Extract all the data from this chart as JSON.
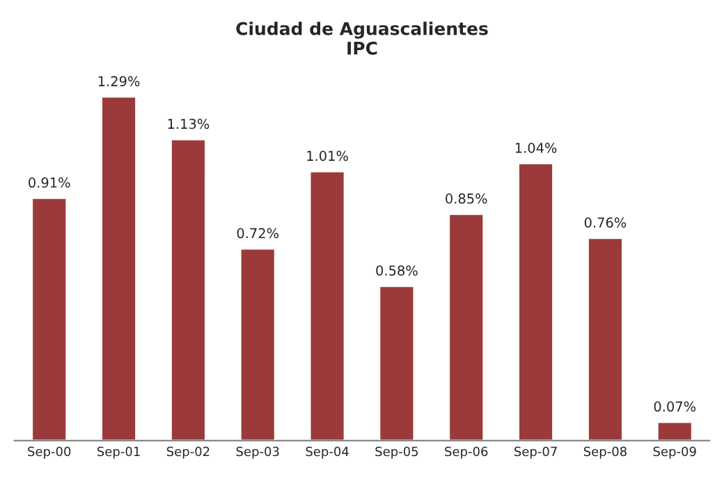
{
  "chart_data": {
    "type": "bar",
    "title": "Ciudad de Aguascalientes\nIPC",
    "categories": [
      "Sep-00",
      "Sep-01",
      "Sep-02",
      "Sep-03",
      "Sep-04",
      "Sep-05",
      "Sep-06",
      "Sep-07",
      "Sep-08",
      "Sep-09"
    ],
    "values": [
      0.91,
      1.29,
      1.13,
      0.72,
      1.01,
      0.58,
      0.85,
      1.04,
      0.76,
      0.07
    ],
    "value_labels": [
      "0.91%",
      "1.29%",
      "1.13%",
      "0.72%",
      "1.01%",
      "0.58%",
      "0.85%",
      "1.04%",
      "0.76%",
      "0.07%"
    ],
    "color": "#9b3a3a",
    "grid": false,
    "legend": false
  }
}
